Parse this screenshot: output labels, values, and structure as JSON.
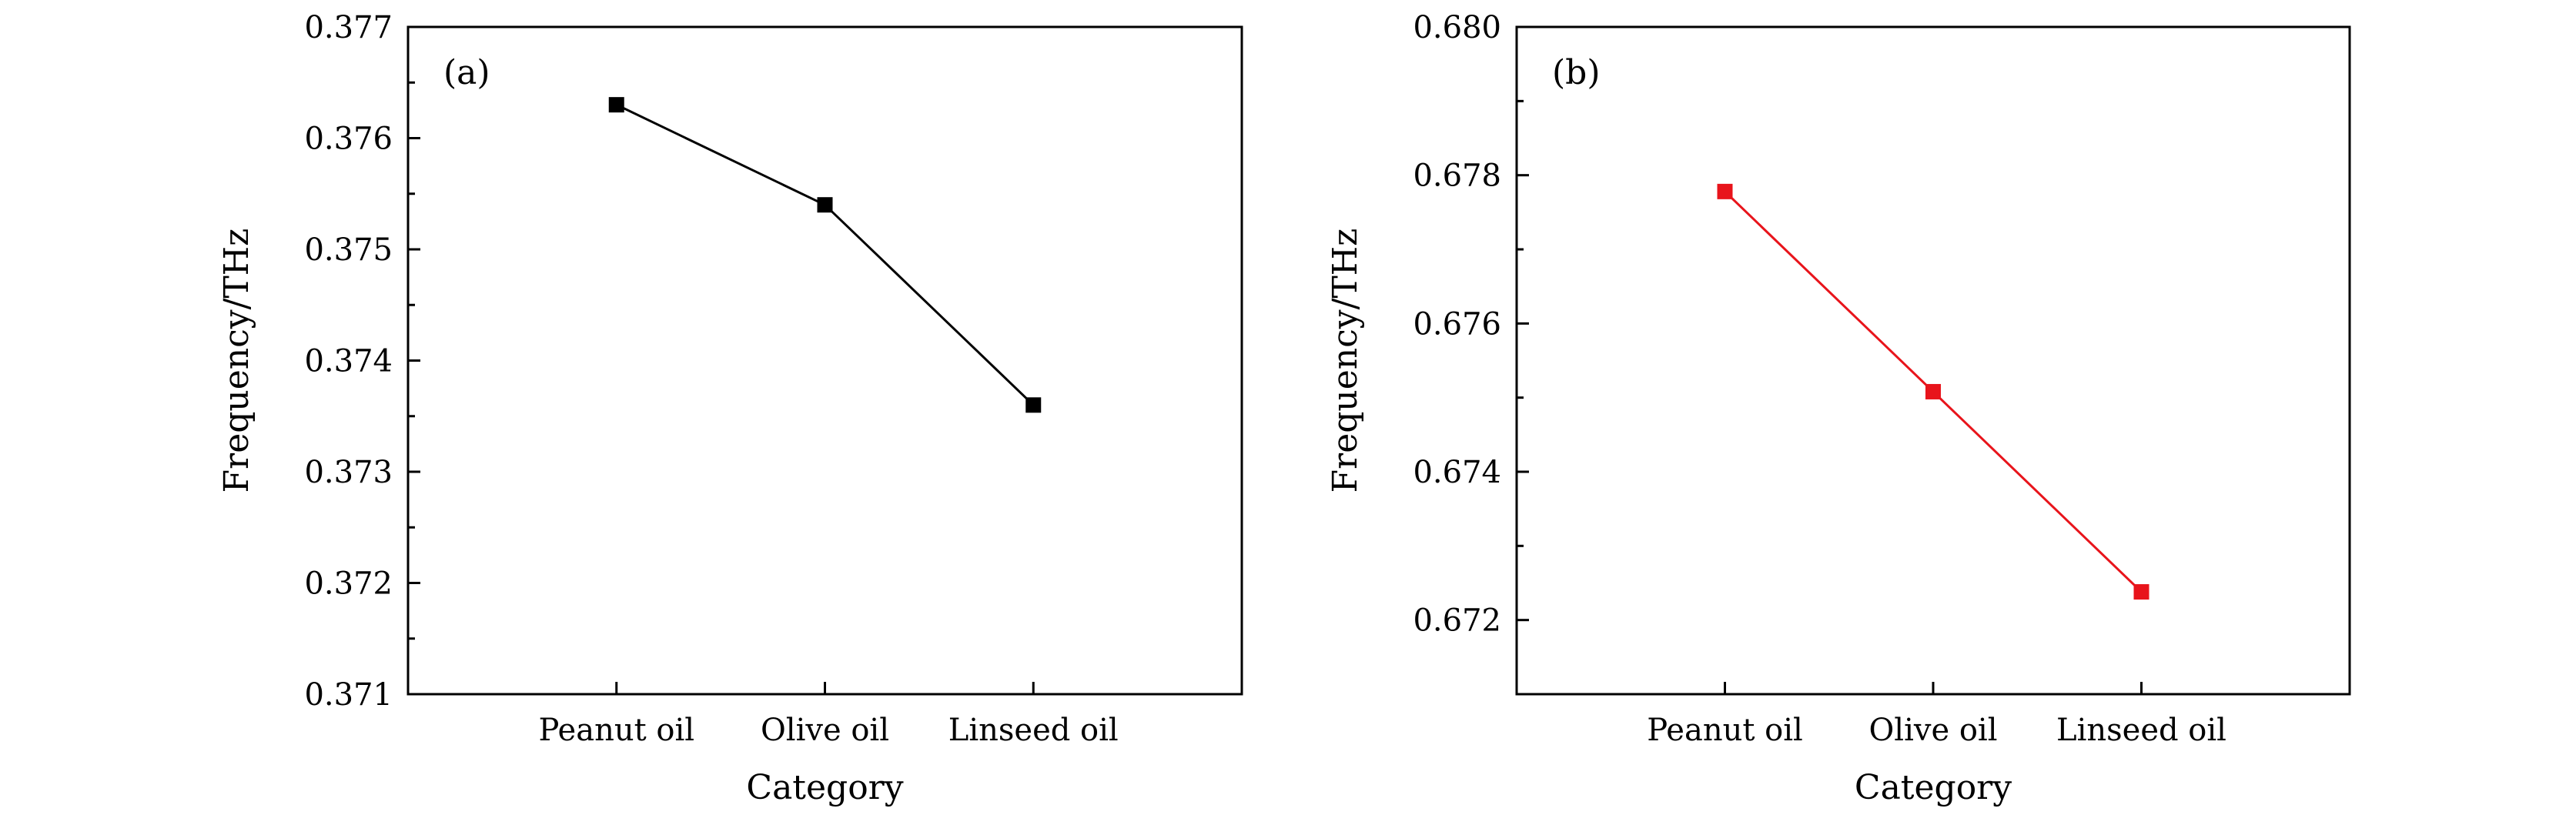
{
  "chart_data": [
    {
      "type": "line",
      "panel_label": "(a)",
      "title": "",
      "xlabel": "Category",
      "ylabel": "Frequency/THz",
      "categories": [
        "Peanut oil",
        "Olive oil",
        "Linseed oil"
      ],
      "series": [
        {
          "values": [
            0.3763,
            0.3754,
            0.3736
          ],
          "color": "#000000"
        }
      ],
      "ylim": [
        0.371,
        0.377
      ],
      "yticks": [
        "0.371",
        "0.372",
        "0.373",
        "0.374",
        "0.375",
        "0.376",
        "0.377"
      ],
      "marker": "square",
      "grid": false
    },
    {
      "type": "line",
      "panel_label": "(b)",
      "title": "",
      "xlabel": "Category",
      "ylabel": "Frequency/THz",
      "categories": [
        "Peanut oil",
        "Olive oil",
        "Linseed oil"
      ],
      "series": [
        {
          "values": [
            0.67778,
            0.67508,
            0.67238
          ],
          "color": "#e8141b"
        }
      ],
      "ylim": [
        0.671,
        0.68
      ],
      "yticks": [
        "0.672",
        "0.674",
        "0.676",
        "0.678",
        "0.680"
      ],
      "marker": "square",
      "grid": false
    }
  ]
}
